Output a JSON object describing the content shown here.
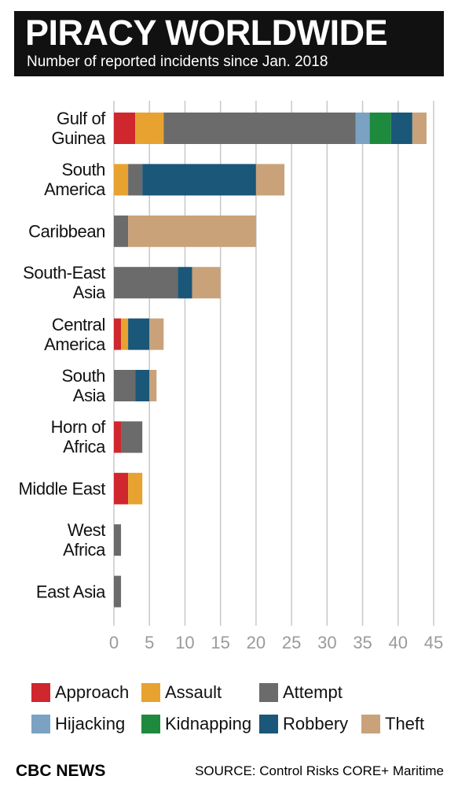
{
  "chart_data": {
    "type": "stacked-bar-horizontal",
    "title": "PIRACY WORLDWIDE",
    "subtitle": "Number of reported incidents since Jan. 2018",
    "credit": "CBC NEWS",
    "source": "SOURCE: Control Risks CORE+ Maritime",
    "categories": [
      "Gulf of\nGuinea",
      "South\nAmerica",
      "Caribbean",
      "South-East\nAsia",
      "Central\nAmerica",
      "South\nAsia",
      "Horn of\nAfrica",
      "Middle East",
      "West\nAfrica",
      "East Asia"
    ],
    "series": [
      {
        "name": "Approach",
        "color": "#d0262d",
        "values": [
          3,
          0,
          0,
          0,
          1,
          0,
          1,
          2,
          0,
          0
        ]
      },
      {
        "name": "Assault",
        "color": "#e8a230",
        "values": [
          4,
          2,
          0,
          0,
          1,
          0,
          0,
          2,
          0,
          0
        ]
      },
      {
        "name": "Attempt",
        "color": "#6b6b6b",
        "values": [
          27,
          2,
          2,
          9,
          0,
          3,
          3,
          0,
          1,
          1
        ]
      },
      {
        "name": "Hijacking",
        "color": "#7ba2c2",
        "values": [
          2,
          0,
          0,
          0,
          0,
          0,
          0,
          0,
          0,
          0
        ]
      },
      {
        "name": "Kidnapping",
        "color": "#1e8a3e",
        "values": [
          3,
          0,
          0,
          0,
          0,
          0,
          0,
          0,
          0,
          0
        ]
      },
      {
        "name": "Robbery",
        "color": "#1a5779",
        "values": [
          3,
          16,
          0,
          2,
          3,
          2,
          0,
          0,
          0,
          0
        ]
      },
      {
        "name": "Theft",
        "color": "#c9a27a",
        "values": [
          2,
          4,
          18,
          4,
          2,
          1,
          0,
          0,
          0,
          0
        ]
      }
    ],
    "xlim": [
      0,
      45
    ],
    "xticks": [
      0,
      5,
      10,
      15,
      20,
      25,
      30,
      35,
      40,
      45
    ],
    "grid": true
  }
}
